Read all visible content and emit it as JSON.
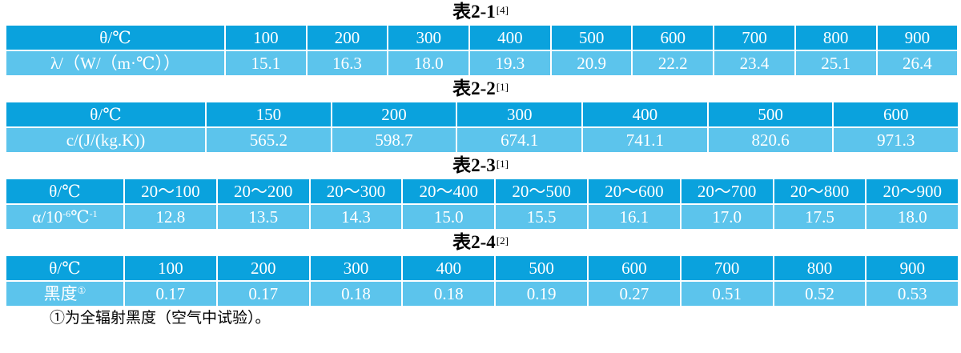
{
  "tables": [
    {
      "title": "表2-1",
      "ref": "[4]",
      "header_label": "θ/℃",
      "value_label": "λ/（W/（m·℃））",
      "header": [
        "100",
        "200",
        "300",
        "400",
        "500",
        "600",
        "700",
        "800",
        "900"
      ],
      "values": [
        "15.1",
        "16.3",
        "18.0",
        "19.3",
        "20.9",
        "22.2",
        "23.4",
        "25.1",
        "26.4"
      ]
    },
    {
      "title": "表2-2",
      "ref": "[1]",
      "header_label": "θ/℃",
      "value_label": "c/(J/(kg.K))",
      "header": [
        "150",
        "200",
        "300",
        "400",
        "500",
        "600"
      ],
      "values": [
        "565.2",
        "598.7",
        "674.1",
        "741.1",
        "820.6",
        "971.3"
      ]
    },
    {
      "title": "表2-3",
      "ref": "[1]",
      "header_label": "θ/℃",
      "value_label_main": "α/10",
      "value_label_sup1": "-6",
      "value_label_mid": "℃",
      "value_label_sup2": "-1",
      "header": [
        "20～100",
        "20～200",
        "20～300",
        "20～400",
        "20～500",
        "20～600",
        "20～700",
        "20～800",
        "20～900"
      ],
      "values": [
        "12.8",
        "13.5",
        "14.3",
        "15.0",
        "15.5",
        "16.1",
        "17.0",
        "17.5",
        "18.0"
      ]
    },
    {
      "title": "表2-4",
      "ref": "[2]",
      "header_label": "θ/℃",
      "value_label_main": "黑度",
      "value_label_sup": "①",
      "header": [
        "100",
        "200",
        "300",
        "400",
        "500",
        "600",
        "700",
        "800",
        "900"
      ],
      "values": [
        "0.17",
        "0.17",
        "0.18",
        "0.18",
        "0.19",
        "0.27",
        "0.51",
        "0.52",
        "0.53"
      ]
    }
  ],
  "footnote": "①为全辐射黑度（空气中试验）。",
  "colors": {
    "header_bg": "#0aa2dd",
    "value_bg": "#5cc4ec",
    "text": "#ffffff"
  }
}
